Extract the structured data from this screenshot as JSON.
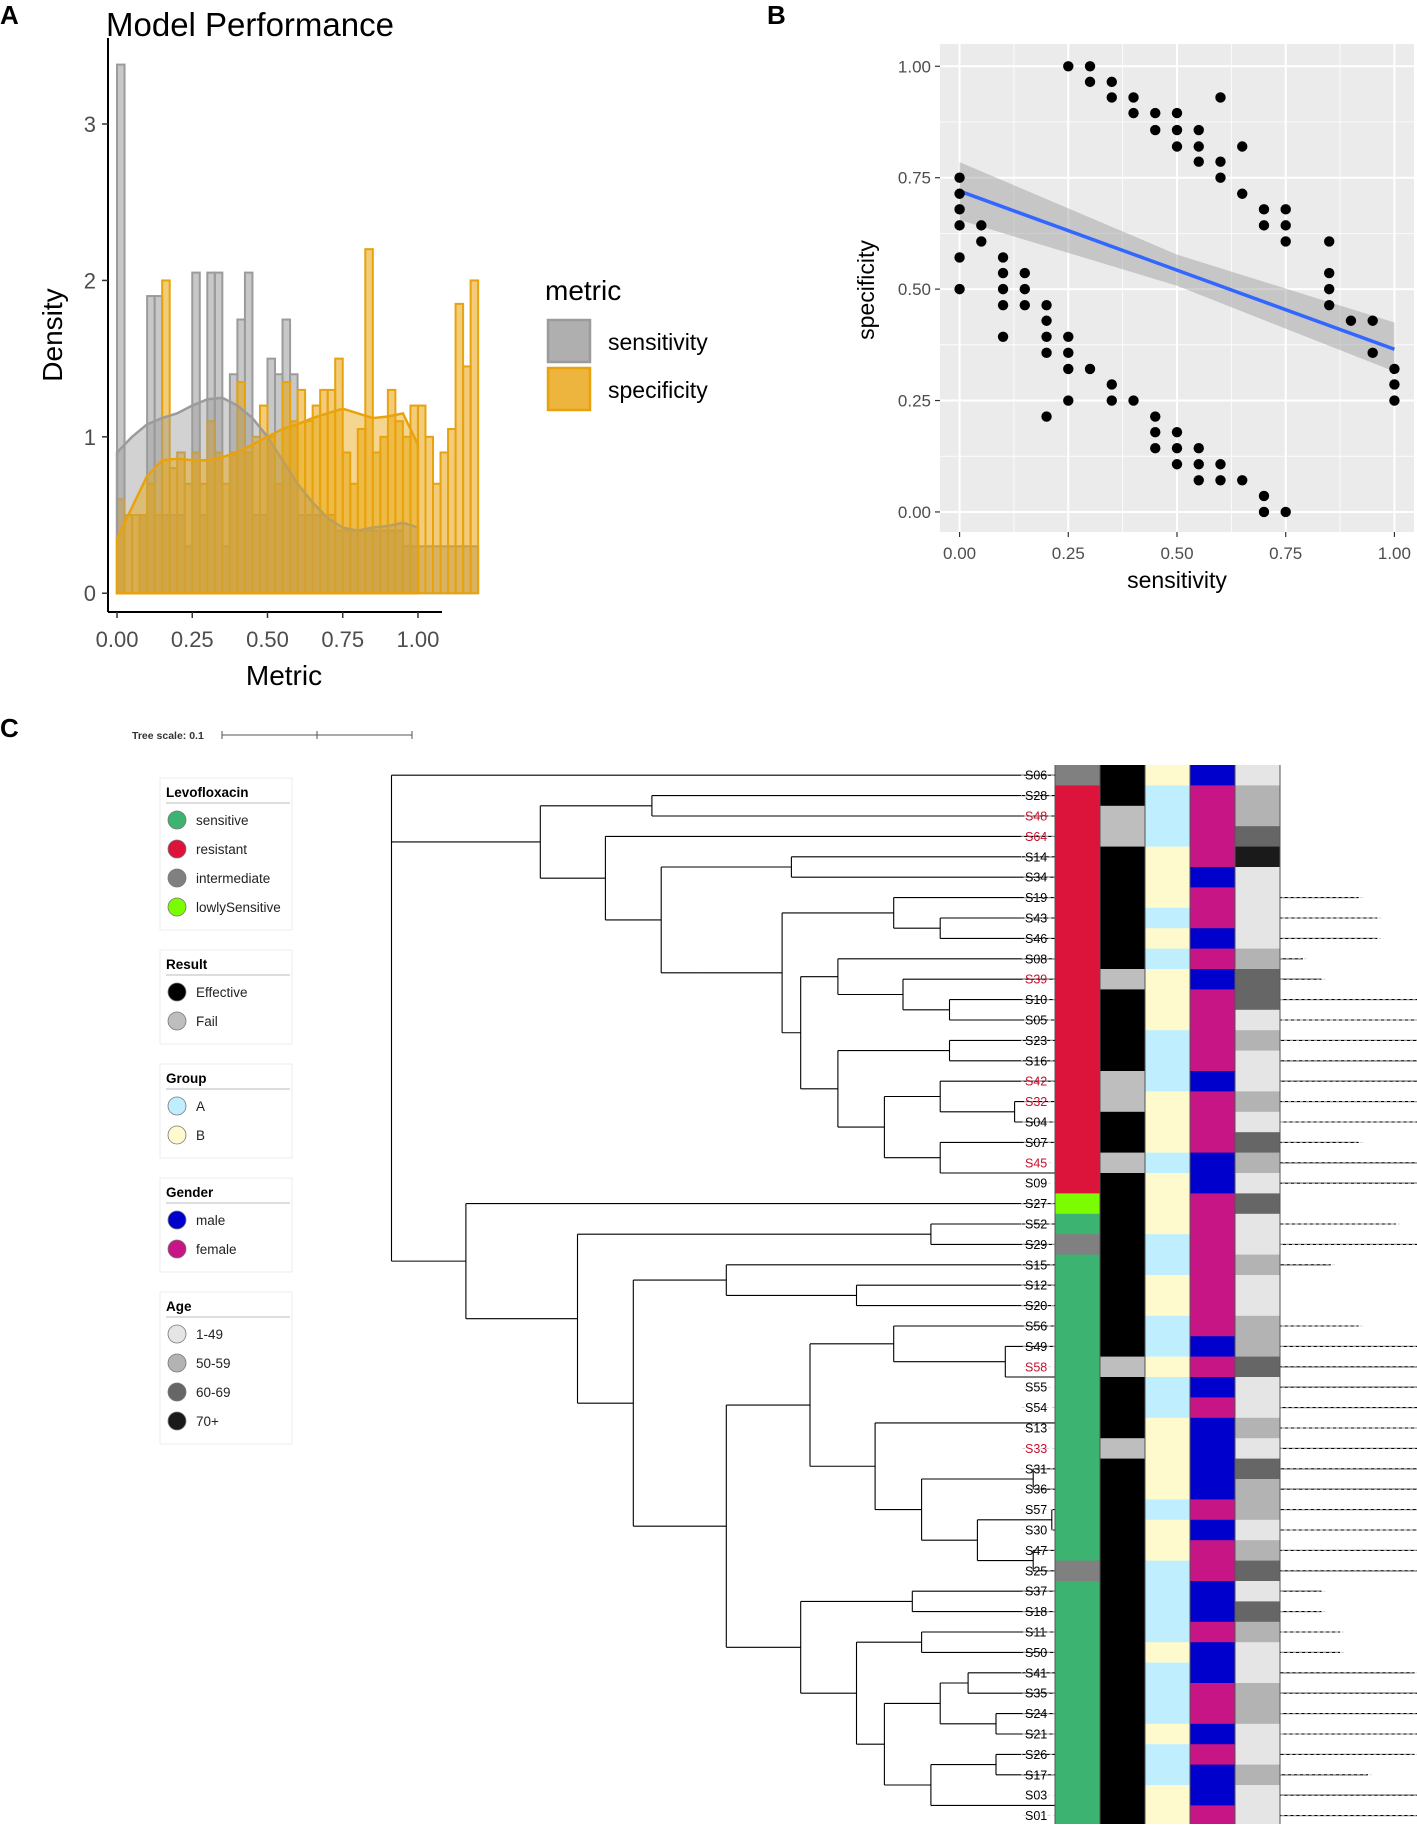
{
  "panels": {
    "a": "A",
    "b": "B",
    "c": "C"
  },
  "chart_data": [
    {
      "id": "A",
      "type": "histogram-density",
      "title": "Model Performance",
      "xlabel": "Metric",
      "ylabel": "Density",
      "xlim": [
        -0.03,
        1.04
      ],
      "ylim": [
        -0.12,
        3.55
      ],
      "x_ticks": [
        0,
        0.25,
        0.5,
        0.75,
        1
      ],
      "x_tick_labels": [
        "0.00",
        "0.25",
        "0.50",
        "0.75",
        "1.00"
      ],
      "y_ticks": [
        0,
        1,
        2,
        3
      ],
      "y_tick_labels": [
        "0",
        "1",
        "2",
        "3"
      ],
      "bin_width": 0.025,
      "legend": {
        "title": "metric",
        "position": "right",
        "entries": [
          "sensitivity",
          "specificity"
        ]
      },
      "colors": {
        "sensitivity": "#9b9b9b",
        "specificity": "#e8a30c"
      },
      "series": [
        {
          "name": "sensitivity",
          "bin_start": 0,
          "densities": [
            3.38,
            0,
            0,
            0.5,
            1.9,
            1.9,
            0.5,
            0.5,
            0.5,
            0.3,
            2.05,
            0.5,
            2.05,
            2.05,
            0.3,
            1.4,
            1.75,
            2.05,
            0.5,
            0.5,
            1.5,
            1.4,
            1.75,
            1.4,
            0.5,
            0.5,
            0.5,
            0.5,
            0.5,
            0.4,
            0.4,
            0.4,
            0.4,
            0.4,
            0.4,
            0.4,
            0.4,
            0.4,
            0.3,
            0.3,
            0.3,
            0.3,
            0.3,
            0.3,
            0.3,
            0.3,
            0.3,
            0.3
          ],
          "density_x": [
            0,
            0.05,
            0.1,
            0.15,
            0.2,
            0.25,
            0.3,
            0.35,
            0.4,
            0.45,
            0.5,
            0.55,
            0.6,
            0.65,
            0.7,
            0.75,
            0.8,
            0.85,
            0.9,
            0.95,
            1.0
          ],
          "density_y": [
            0.9,
            1.0,
            1.08,
            1.12,
            1.15,
            1.2,
            1.24,
            1.25,
            1.2,
            1.12,
            1.0,
            0.85,
            0.7,
            0.58,
            0.48,
            0.42,
            0.4,
            0.42,
            0.43,
            0.45,
            0.42
          ]
        },
        {
          "name": "specificity",
          "bin_start": 0,
          "densities": [
            0.6,
            0.5,
            0.5,
            0.5,
            0.7,
            0.5,
            2.0,
            0.8,
            0.9,
            0.7,
            0.9,
            0.7,
            1.1,
            0.9,
            0.7,
            0.9,
            1.35,
            0.9,
            1.0,
            1.2,
            1.0,
            0.7,
            1.35,
            1.1,
            1.3,
            1.1,
            1.2,
            1.3,
            1.3,
            1.5,
            0.9,
            0.7,
            1.05,
            2.2,
            0.9,
            1.0,
            1.3,
            1.1,
            1.0,
            1.2,
            1.2,
            1.0,
            0.7,
            0.9,
            1.05,
            1.85,
            1.45,
            2.0
          ],
          "density_x": [
            0,
            0.05,
            0.1,
            0.15,
            0.2,
            0.25,
            0.3,
            0.35,
            0.4,
            0.45,
            0.5,
            0.55,
            0.6,
            0.65,
            0.7,
            0.75,
            0.8,
            0.85,
            0.9,
            0.95,
            1.0
          ],
          "density_y": [
            0.35,
            0.55,
            0.75,
            0.85,
            0.86,
            0.85,
            0.85,
            0.87,
            0.9,
            0.95,
            1.0,
            1.05,
            1.08,
            1.12,
            1.15,
            1.18,
            1.15,
            1.12,
            1.13,
            1.15,
            0.95
          ]
        }
      ]
    },
    {
      "id": "B",
      "type": "scatter",
      "xlabel": "sensitivity",
      "ylabel": "specificity",
      "xlim": [
        -0.045,
        1.045
      ],
      "ylim": [
        -0.045,
        1.05
      ],
      "x_ticks": [
        0,
        0.25,
        0.5,
        0.75,
        1
      ],
      "x_tick_labels": [
        "0.00",
        "0.25",
        "0.50",
        "0.75",
        "1.00"
      ],
      "y_ticks": [
        0,
        0.25,
        0.5,
        0.75,
        1
      ],
      "y_tick_labels": [
        "0.00",
        "0.25",
        "0.50",
        "0.75",
        "1.00"
      ],
      "fit": {
        "method": "lm",
        "color": "#3366ff",
        "x": [
          0,
          1
        ],
        "y": [
          0.72,
          0.365
        ],
        "ci_low": [
          0.655,
          0.315
        ],
        "ci_high": [
          0.785,
          0.425
        ]
      },
      "points": [
        [
          0.25,
          1.0
        ],
        [
          0.3,
          1.0
        ],
        [
          0.3,
          0.965
        ],
        [
          0.35,
          0.965
        ],
        [
          0.35,
          0.93
        ],
        [
          0.4,
          0.93
        ],
        [
          0.4,
          0.895
        ],
        [
          0.45,
          0.895
        ],
        [
          0.5,
          0.895
        ],
        [
          0.45,
          0.857
        ],
        [
          0.5,
          0.857
        ],
        [
          0.55,
          0.857
        ],
        [
          0.5,
          0.82
        ],
        [
          0.55,
          0.82
        ],
        [
          0.6,
          0.93
        ],
        [
          0.65,
          0.82
        ],
        [
          0.55,
          0.786
        ],
        [
          0.6,
          0.786
        ],
        [
          0.6,
          0.75
        ],
        [
          0.65,
          0.714
        ],
        [
          0.7,
          0.679
        ],
        [
          0.75,
          0.679
        ],
        [
          0.7,
          0.643
        ],
        [
          0.75,
          0.643
        ],
        [
          0.75,
          0.607
        ],
        [
          0.85,
          0.607
        ],
        [
          0.85,
          0.536
        ],
        [
          0.85,
          0.5
        ],
        [
          0.85,
          0.464
        ],
        [
          0.9,
          0.429
        ],
        [
          0.95,
          0.429
        ],
        [
          0.95,
          0.357
        ],
        [
          1.0,
          0.321
        ],
        [
          1.0,
          0.286
        ],
        [
          1.0,
          0.25
        ],
        [
          0,
          0.75
        ],
        [
          0,
          0.714
        ],
        [
          0,
          0.679
        ],
        [
          0,
          0.643
        ],
        [
          0.05,
          0.643
        ],
        [
          0.05,
          0.607
        ],
        [
          0,
          0.571
        ],
        [
          0,
          0.5
        ],
        [
          0.1,
          0.571
        ],
        [
          0.1,
          0.536
        ],
        [
          0.15,
          0.536
        ],
        [
          0.1,
          0.5
        ],
        [
          0.15,
          0.5
        ],
        [
          0.1,
          0.464
        ],
        [
          0.15,
          0.464
        ],
        [
          0.2,
          0.464
        ],
        [
          0.2,
          0.429
        ],
        [
          0.2,
          0.393
        ],
        [
          0.1,
          0.393
        ],
        [
          0.25,
          0.393
        ],
        [
          0.2,
          0.357
        ],
        [
          0.25,
          0.357
        ],
        [
          0.25,
          0.321
        ],
        [
          0.3,
          0.321
        ],
        [
          0.35,
          0.286
        ],
        [
          0.35,
          0.25
        ],
        [
          0.4,
          0.25
        ],
        [
          0.25,
          0.25
        ],
        [
          0.2,
          0.214
        ],
        [
          0.45,
          0.214
        ],
        [
          0.45,
          0.179
        ],
        [
          0.5,
          0.179
        ],
        [
          0.45,
          0.143
        ],
        [
          0.5,
          0.143
        ],
        [
          0.55,
          0.143
        ],
        [
          0.5,
          0.107
        ],
        [
          0.55,
          0.107
        ],
        [
          0.6,
          0.107
        ],
        [
          0.55,
          0.071
        ],
        [
          0.6,
          0.071
        ],
        [
          0.65,
          0.071
        ],
        [
          0.7,
          0.036
        ],
        [
          0.7,
          0.0
        ],
        [
          0.75,
          0.0
        ]
      ]
    },
    {
      "id": "C",
      "type": "phylogenetic-tree-heatmap",
      "tree_scale_label": "Tree scale: 0.1",
      "samples": [
        "S06",
        "S28",
        "S48",
        "S64",
        "S14",
        "S34",
        "S19",
        "S43",
        "S46",
        "S08",
        "S39",
        "S10",
        "S05",
        "S23",
        "S16",
        "S42",
        "S32",
        "S04",
        "S07",
        "S45",
        "S09",
        "S27",
        "S52",
        "S29",
        "S15",
        "S12",
        "S20",
        "S56",
        "S49",
        "S58",
        "S55",
        "S54",
        "S13",
        "S33",
        "S31",
        "S36",
        "S57",
        "S30",
        "S47",
        "S25",
        "S37",
        "S18",
        "S11",
        "S50",
        "S41",
        "S35",
        "S24",
        "S21",
        "S26",
        "S17",
        "S03",
        "S01"
      ],
      "highlighted_samples": [
        "S48",
        "S64",
        "S39",
        "S42",
        "S32",
        "S45",
        "S58",
        "S33"
      ],
      "label_colors": {
        "normal": "#000000",
        "highlight": "#c8102e"
      },
      "tree": "(S06:0.85,(((S28:0.6,S48:0.58):0.12,(S64:0.53,((S14:0.45,S34:0.3):0.14,(((S19:0.5,(S43:0.47,S46:0.47):0.05):0.12,((S08:0.5,(S39:0.45,(S10:0.6,S05:0.55):0.05):0.07):0.04,((S23:0.52,S16:0.52):0.12,((S42:0.55,(S32:0.68,S04:0.53):0.08):0.06,(S07:0.45,(S45:0.64,S09:0.42):0.14):0.06):0.05):0.04):0.02):0.09):0.04):0.06):0.07):0.06):0.1,(S27:0.86,((S52:0.5,S29:0.6):0.38,((S15:0.65,(S12:0.35,S20:0.35):0.14):0.1,(((S56:0.5,(S49:0.45,(S58:0.55,S55:0.55):0.23):0.12):0.09,((S54:0.48,(S13:0.53,S33:0.47):0.03):0.27,((S31:0.43,S36:0.43):0.12,((S57:0.5,S30:0.5):0.08,(S47:0.55,S25:0.55):0.06):0.06):0.05):0.07):0.09,((S37:0.44,S18:0.44):0.12,((S11:0.45,S50:0.45):0.07,(((S41:0.48,S35:0.58):0.03,(S24:0.55,S21:0.55):0.06):0.06,((S26:0.45,S17:0.4):0.07,(S03:0.4,S01:0.4):0.15):0.05):0.03):0.06):0.08):0.1):0.06):0.12):0.08):0.05):0.06);",
      "heatmap_columns": [
        "Levofloxacin",
        "Result",
        "Group",
        "Gender",
        "Age"
      ],
      "heatmap": {
        "Levofloxacin": [
          "intermediate",
          "resistant",
          "resistant",
          "resistant",
          "resistant",
          "resistant",
          "resistant",
          "resistant",
          "resistant",
          "resistant",
          "resistant",
          "resistant",
          "resistant",
          "resistant",
          "resistant",
          "resistant",
          "resistant",
          "resistant",
          "resistant",
          "resistant",
          "resistant",
          "lowlySensitive",
          "sensitive",
          "intermediate",
          "sensitive",
          "sensitive",
          "sensitive",
          "sensitive",
          "sensitive",
          "sensitive",
          "sensitive",
          "sensitive",
          "sensitive",
          "sensitive",
          "sensitive",
          "sensitive",
          "sensitive",
          "sensitive",
          "sensitive",
          "intermediate",
          "sensitive",
          "sensitive",
          "sensitive",
          "sensitive",
          "sensitive",
          "sensitive",
          "sensitive",
          "sensitive",
          "sensitive",
          "sensitive",
          "sensitive",
          "sensitive"
        ],
        "Result": [
          "Effective",
          "Effective",
          "Fail",
          "Fail",
          "Effective",
          "Effective",
          "Effective",
          "Effective",
          "Effective",
          "Effective",
          "Fail",
          "Effective",
          "Effective",
          "Effective",
          "Effective",
          "Fail",
          "Fail",
          "Effective",
          "Effective",
          "Fail",
          "Effective",
          "Effective",
          "Effective",
          "Effective",
          "Effective",
          "Effective",
          "Effective",
          "Effective",
          "Effective",
          "Fail",
          "Effective",
          "Effective",
          "Effective",
          "Fail",
          "Effective",
          "Effective",
          "Effective",
          "Effective",
          "Effective",
          "Effective",
          "Effective",
          "Effective",
          "Effective",
          "Effective",
          "Effective",
          "Effective",
          "Effective",
          "Effective",
          "Effective",
          "Effective",
          "Effective",
          "Effective"
        ],
        "Group": [
          "B",
          "A",
          "A",
          "A",
          "B",
          "B",
          "B",
          "A",
          "B",
          "A",
          "B",
          "B",
          "B",
          "A",
          "A",
          "A",
          "B",
          "B",
          "B",
          "A",
          "B",
          "B",
          "B",
          "A",
          "A",
          "B",
          "B",
          "A",
          "A",
          "B",
          "A",
          "A",
          "B",
          "B",
          "B",
          "B",
          "A",
          "B",
          "B",
          "A",
          "A",
          "A",
          "A",
          "B",
          "A",
          "A",
          "A",
          "B",
          "A",
          "A",
          "B",
          "B"
        ],
        "Gender": [
          "male",
          "female",
          "female",
          "female",
          "female",
          "male",
          "female",
          "female",
          "male",
          "female",
          "male",
          "female",
          "female",
          "female",
          "female",
          "male",
          "female",
          "female",
          "female",
          "male",
          "male",
          "female",
          "female",
          "female",
          "female",
          "female",
          "female",
          "female",
          "male",
          "female",
          "male",
          "female",
          "male",
          "male",
          "male",
          "male",
          "female",
          "male",
          "female",
          "female",
          "male",
          "male",
          "female",
          "male",
          "male",
          "female",
          "female",
          "male",
          "female",
          "male",
          "male",
          "female"
        ],
        "Age": [
          "1-49",
          "50-59",
          "50-59",
          "60-69",
          "70+",
          "1-49",
          "1-49",
          "1-49",
          "1-49",
          "50-59",
          "60-69",
          "60-69",
          "1-49",
          "50-59",
          "1-49",
          "1-49",
          "50-59",
          "1-49",
          "60-69",
          "50-59",
          "1-49",
          "60-69",
          "1-49",
          "1-49",
          "50-59",
          "1-49",
          "1-49",
          "50-59",
          "50-59",
          "60-69",
          "1-49",
          "1-49",
          "50-59",
          "1-49",
          "60-69",
          "50-59",
          "50-59",
          "1-49",
          "50-59",
          "60-69",
          "1-49",
          "60-69",
          "50-59",
          "1-49",
          "1-49",
          "50-59",
          "50-59",
          "1-49",
          "1-49",
          "50-59",
          "1-49",
          "1-49"
        ]
      },
      "legends": [
        {
          "title": "Levofloxacin",
          "entries": [
            {
              "label": "sensitive",
              "color": "#3cb371"
            },
            {
              "label": "resistant",
              "color": "#dc143c"
            },
            {
              "label": "intermediate",
              "color": "#808080"
            },
            {
              "label": "lowlySensitive",
              "color": "#7cfc00"
            }
          ]
        },
        {
          "title": "Result",
          "entries": [
            {
              "label": "Effective",
              "color": "#000000"
            },
            {
              "label": "Fail",
              "color": "#bebebe"
            }
          ]
        },
        {
          "title": "Group",
          "entries": [
            {
              "label": "A",
              "color": "#bfefff"
            },
            {
              "label": "B",
              "color": "#fffacd"
            }
          ]
        },
        {
          "title": "Gender",
          "entries": [
            {
              "label": "male",
              "color": "#0000cd"
            },
            {
              "label": "female",
              "color": "#c71585"
            }
          ]
        },
        {
          "title": "Age",
          "entries": [
            {
              "label": "1-49",
              "color": "#e5e5e5"
            },
            {
              "label": "50-59",
              "color": "#b3b3b3"
            },
            {
              "label": "60-69",
              "color": "#666666"
            },
            {
              "label": "70+",
              "color": "#1a1a1a"
            }
          ]
        }
      ]
    }
  ]
}
